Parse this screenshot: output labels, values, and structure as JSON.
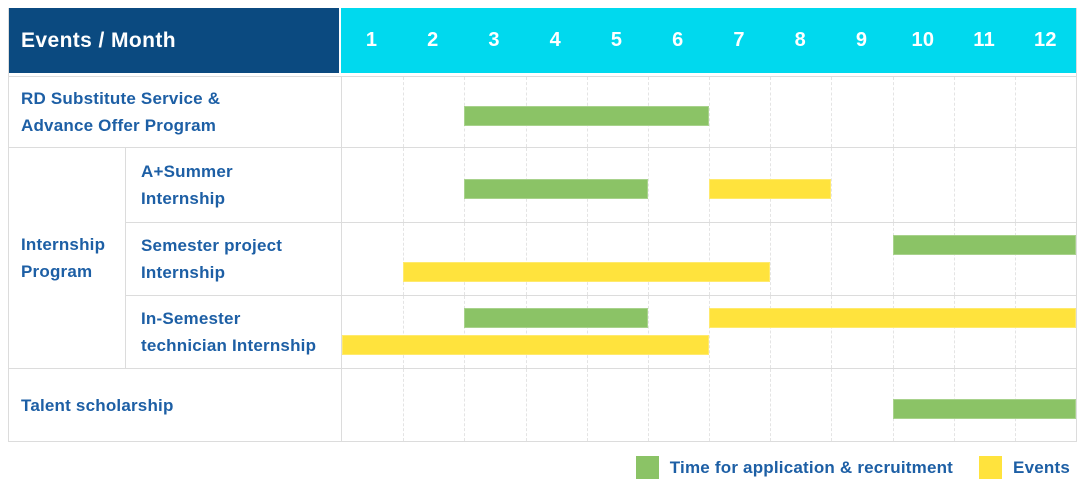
{
  "header": {
    "title": "Events / Month"
  },
  "colors": {
    "navy": "#0b4a80",
    "cyan": "#00d9ee",
    "green": "#8bc366",
    "yellow": "#ffe33d",
    "label_text": "#1d5fa5",
    "grid_line": "#e4e4e4",
    "border": "#dcdcdc"
  },
  "legend": {
    "items": [
      {
        "color": "green",
        "label": "Time for application & recruitment"
      },
      {
        "color": "yellow",
        "label": "Events"
      }
    ]
  },
  "chart_data": {
    "type": "gantt",
    "x": {
      "unit": "month",
      "ticks": [
        "1",
        "2",
        "3",
        "4",
        "5",
        "6",
        "7",
        "8",
        "9",
        "10",
        "11",
        "12"
      ],
      "min": 1,
      "max": 12
    },
    "bar_meaning": {
      "green": "Time for application & recruitment",
      "yellow": "Events"
    },
    "group_cell": {
      "label": "Internship Program",
      "label_lines": [
        "Internship",
        "Program"
      ],
      "rows": [
        1,
        3
      ]
    },
    "rows": [
      {
        "label": "RD Substitute Service & Advance Offer Program",
        "label_lines": [
          "RD Substitute Service &",
          "Advance Offer Program"
        ],
        "group": "",
        "bars": [
          {
            "color": "green",
            "from": 3,
            "to": 6,
            "line": 0
          }
        ]
      },
      {
        "label": "A+Summer Internship",
        "label_lines": [
          "A+Summer",
          "Internship"
        ],
        "group": "Internship Program",
        "bars": [
          {
            "color": "green",
            "from": 3,
            "to": 5,
            "line": 0
          },
          {
            "color": "yellow",
            "from": 7,
            "to": 8,
            "line": 0
          }
        ]
      },
      {
        "label": "Semester project Internship",
        "label_lines": [
          "Semester project",
          "Internship"
        ],
        "group": "Internship Program",
        "bars": [
          {
            "color": "green",
            "from": 10,
            "to": 12,
            "line": 0
          },
          {
            "color": "yellow",
            "from": 2,
            "to": 7,
            "line": 1
          }
        ]
      },
      {
        "label": "In-Semester technician Internship",
        "label_lines": [
          "In-Semester",
          "technician Internship"
        ],
        "group": "Internship Program",
        "bars": [
          {
            "color": "green",
            "from": 3,
            "to": 5,
            "line": 0
          },
          {
            "color": "yellow",
            "from": 7,
            "to": 12,
            "line": 0
          },
          {
            "color": "yellow",
            "from": 1,
            "to": 6,
            "line": 1
          }
        ]
      },
      {
        "label": "Talent scholarship",
        "label_lines": [
          "Talent scholarship"
        ],
        "group": "",
        "bars": [
          {
            "color": "green",
            "from": 10,
            "to": 12,
            "line": 0
          }
        ]
      }
    ]
  }
}
